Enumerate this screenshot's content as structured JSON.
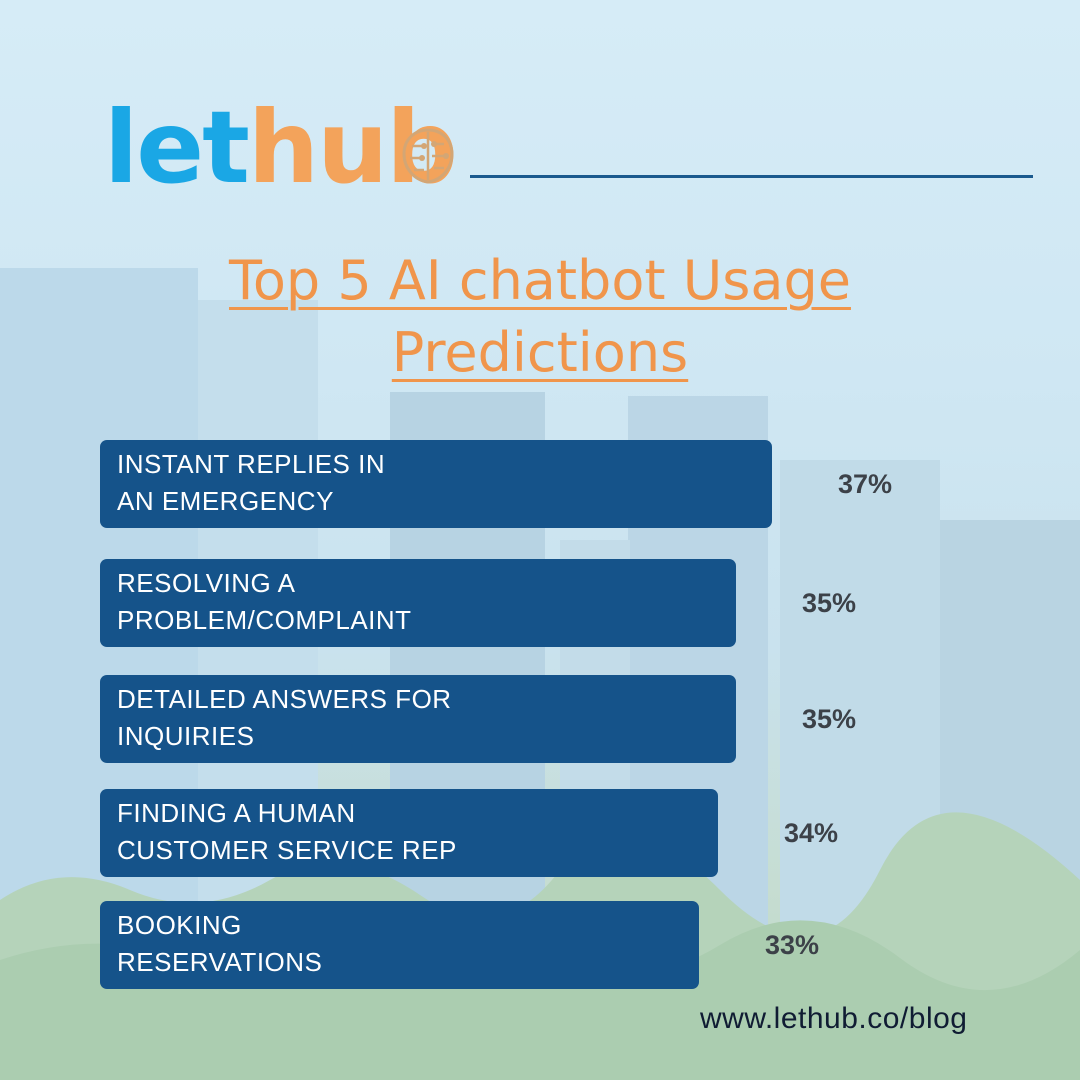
{
  "brand": {
    "logo_part1": "let",
    "logo_part2": "hu",
    "logo_part3": "b",
    "colors": {
      "blue": "#1aa7e5",
      "orange": "#f3a35b",
      "rule": "#1a5a8e"
    }
  },
  "colors": {
    "bar": "#15538a",
    "title": "#f0954b",
    "value_text": "#3c4148",
    "url_text": "#101c33"
  },
  "chart_data": {
    "type": "bar",
    "orientation": "horizontal",
    "title": "Top 5 AI chatbot Usage Predictions",
    "categories": [
      "INSTANT REPLIES IN\nAN EMERGENCY",
      "RESOLVING A\nPROBLEM/COMPLAINT",
      "DETAILED ANSWERS FOR\nINQUIRIES",
      "FINDING A HUMAN\nCUSTOMER SERVICE REP",
      "BOOKING\nRESERVATIONS"
    ],
    "values": [
      37,
      35,
      35,
      34,
      33
    ],
    "value_labels": [
      "37%",
      "35%",
      "35%",
      "34%",
      "33%"
    ],
    "xlabel": "",
    "ylabel": "",
    "grid": false,
    "legend": "none"
  },
  "footer": {
    "url": "www.lethub.co/blog"
  }
}
